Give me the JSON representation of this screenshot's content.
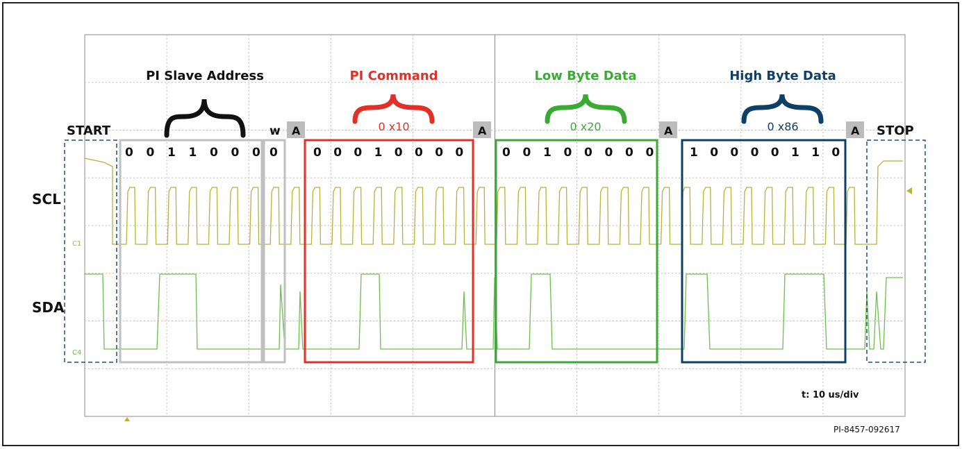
{
  "sections": {
    "slave_address": {
      "title": "PI Slave Address",
      "bits": [
        "0",
        "0",
        "1",
        "1",
        "0",
        "0",
        "0"
      ],
      "color": "#bfbfbf",
      "title_color": "#111111"
    },
    "command": {
      "title": "PI Command",
      "hex": "0 x10",
      "bits": [
        "0",
        "0",
        "0",
        "1",
        "0",
        "0",
        "0",
        "0"
      ],
      "color": "#e03028",
      "title_color": "#e03028"
    },
    "low_byte": {
      "title": "Low Byte Data",
      "hex": "0 x20",
      "bits": [
        "0",
        "0",
        "1",
        "0",
        "0",
        "0",
        "0",
        "0"
      ],
      "color": "#3aaa35",
      "title_color": "#3aaa35"
    },
    "high_byte": {
      "title": "High Byte Data",
      "hex": "0 x86",
      "bits": [
        "1",
        "0",
        "0",
        "0",
        "0",
        "1",
        "1",
        "0"
      ],
      "color": "#0e3f66",
      "title_color": "#0e3f66"
    }
  },
  "labels": {
    "start": "START",
    "stop": "STOP",
    "write": "w",
    "write_bit": "0",
    "ack": "A",
    "scl": "SCL",
    "sda": "SDA",
    "scl_channel": "C1",
    "sda_channel": "C4",
    "timebase": "t: 10 us/div",
    "figure_id": "PI-8457-092617"
  },
  "colors": {
    "scl_trace": "#b5b23a",
    "sda_trace": "#6cc04a",
    "grid": "#bbbbbb",
    "ack_box": "#bcbcbc",
    "start_stop_box": "#1f4e79"
  }
}
